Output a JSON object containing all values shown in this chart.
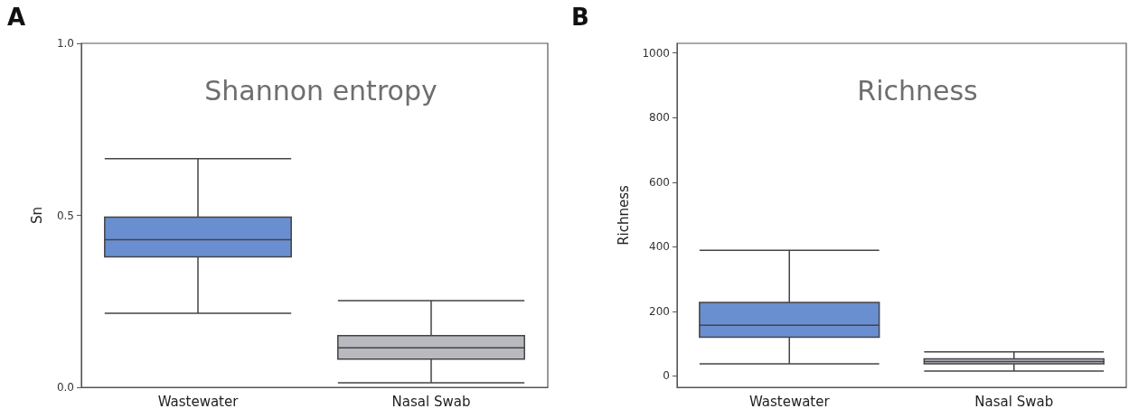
{
  "chart_data": [
    {
      "type": "box",
      "title": "Shannon entropy",
      "ylabel": "Sn",
      "annotations": [
        "A"
      ],
      "categories": [
        "Wastewater",
        "Nasal Swab"
      ],
      "boxes": [
        {
          "low": 0.215,
          "q1": 0.379,
          "median": 0.429,
          "q3": 0.495,
          "high": 0.665
        },
        {
          "low": 0.013,
          "q1": 0.082,
          "median": 0.115,
          "q3": 0.15,
          "high": 0.252
        }
      ],
      "colors": [
        "#6a8fd0",
        "#b9b9c0"
      ],
      "ylim": [
        0,
        1
      ],
      "yticks": [
        {
          "value": 0,
          "label": "0.0"
        },
        {
          "value": 0.5,
          "label": "0.5"
        },
        {
          "value": 1,
          "label": "1.0"
        }
      ],
      "grid": false
    },
    {
      "type": "box",
      "title": "Richness",
      "ylabel": "Richness",
      "annotations": [
        "B"
      ],
      "categories": [
        "Wastewater",
        "Nasal Swab"
      ],
      "boxes": [
        {
          "low": 38,
          "q1": 120,
          "median": 157,
          "q3": 228,
          "high": 389
        },
        {
          "low": 15,
          "q1": 38,
          "median": 45,
          "q3": 53,
          "high": 75
        }
      ],
      "colors": [
        "#6a8fd0",
        "#b9b9c0"
      ],
      "ylim": [
        -35,
        1030
      ],
      "yticks": [
        0,
        200,
        400,
        600,
        800,
        1000
      ],
      "grid": false
    }
  ]
}
